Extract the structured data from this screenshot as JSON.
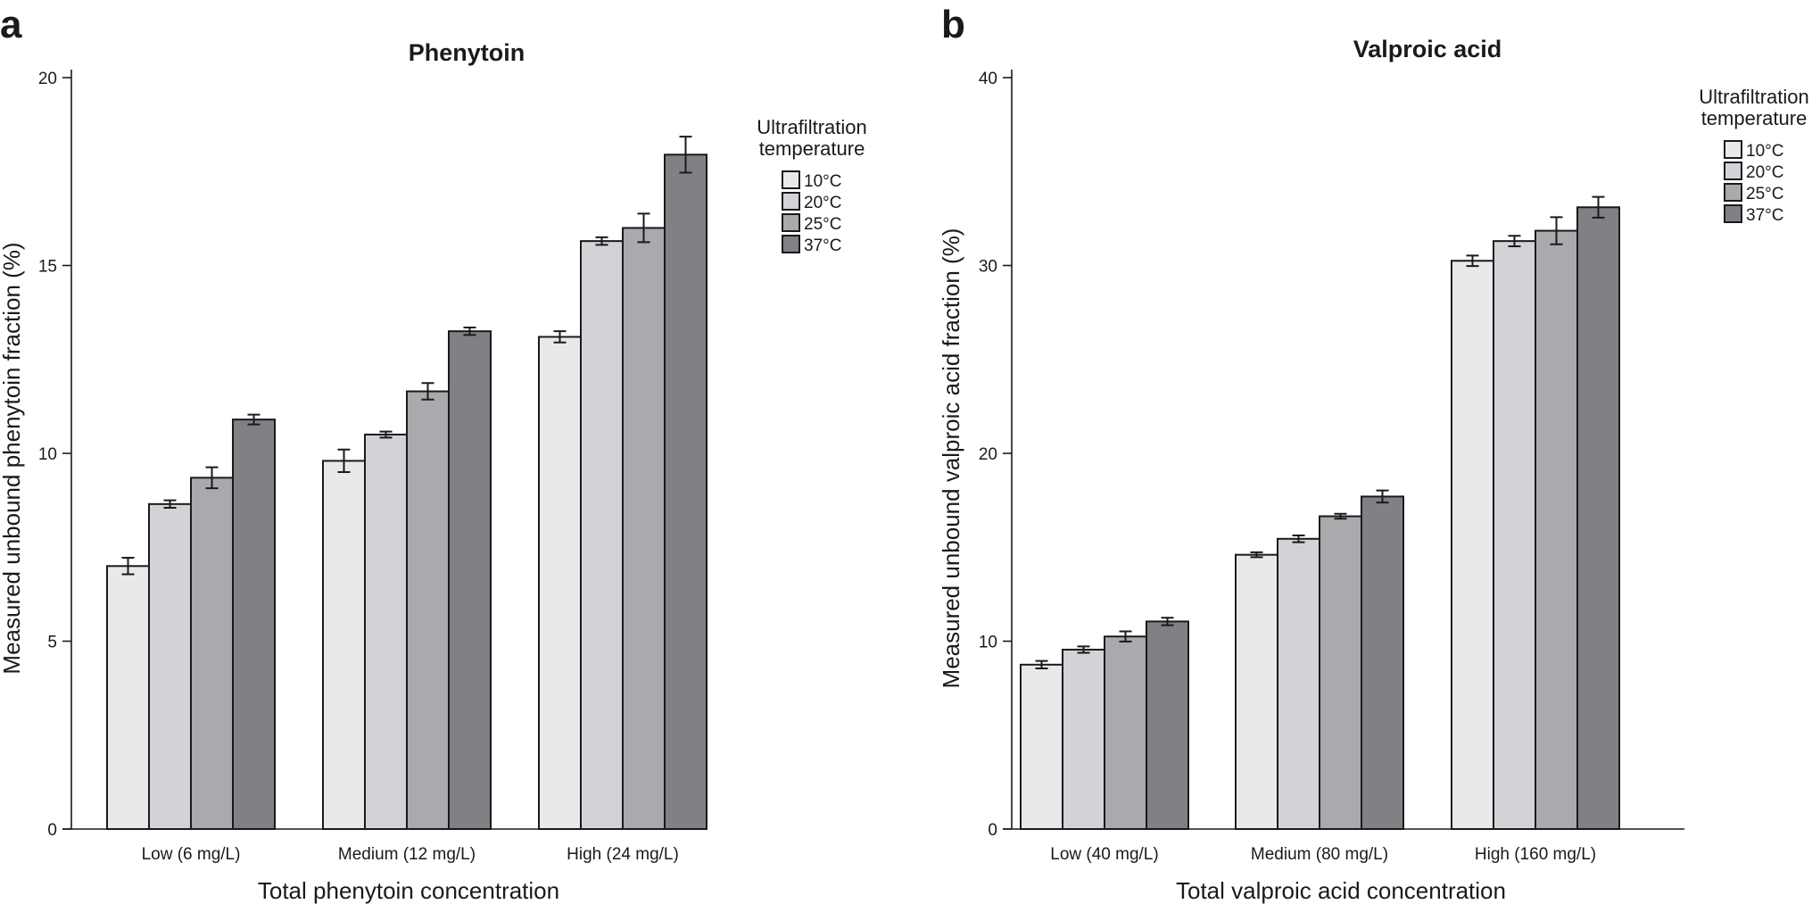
{
  "colors": [
    "#e8e9eb",
    "#d2d3d6",
    "#a9aaad",
    "#808185"
  ],
  "chart_data": [
    {
      "type": "bar",
      "panel_label": "a",
      "title": "Phenytoin",
      "xlabel": "Total phenytoin concentration",
      "ylabel": "Measured unbound phenytoin fraction (%)",
      "ylim": [
        0,
        20
      ],
      "yticks": [
        0,
        5,
        10,
        15,
        20
      ],
      "categories": [
        "Low  (6 mg/L)",
        "Medium (12 mg/L)",
        "High (24 mg/L)"
      ],
      "legend_title": [
        "Ultrafiltration",
        "temperature"
      ],
      "legend_position": "top-right",
      "grid": false,
      "series": [
        {
          "name": "10°C",
          "values": [
            7.0,
            9.8,
            13.1
          ],
          "errors": [
            0.22,
            0.3,
            0.15
          ]
        },
        {
          "name": "20°C",
          "values": [
            8.65,
            10.5,
            15.65
          ],
          "errors": [
            0.1,
            0.08,
            0.1
          ]
        },
        {
          "name": "25°C",
          "values": [
            9.35,
            11.65,
            16.0
          ],
          "errors": [
            0.28,
            0.22,
            0.38
          ]
        },
        {
          "name": "37°C",
          "values": [
            10.9,
            13.25,
            17.95
          ],
          "errors": [
            0.13,
            0.1,
            0.48
          ]
        }
      ]
    },
    {
      "type": "bar",
      "panel_label": "b",
      "title": "Valproic acid",
      "xlabel": "Total valproic acid concentration",
      "ylabel": "Measured unbound valproic acid fraction (%)",
      "ylim": [
        0,
        40
      ],
      "yticks": [
        0,
        10,
        20,
        30,
        40
      ],
      "categories": [
        "Low  (40 mg/L)",
        "Medium (80 mg/L)",
        "High (160 mg/L)"
      ],
      "legend_title": [
        "Ultrafiltration",
        "temperature"
      ],
      "legend_position": "top-right",
      "grid": false,
      "series": [
        {
          "name": "10°C",
          "values": [
            8.75,
            14.6,
            30.25
          ],
          "errors": [
            0.2,
            0.13,
            0.28
          ]
        },
        {
          "name": "20°C",
          "values": [
            9.55,
            15.45,
            31.3
          ],
          "errors": [
            0.17,
            0.18,
            0.28
          ]
        },
        {
          "name": "25°C",
          "values": [
            10.25,
            16.65,
            31.85
          ],
          "errors": [
            0.27,
            0.13,
            0.72
          ]
        },
        {
          "name": "37°C",
          "values": [
            11.05,
            17.7,
            33.1
          ],
          "errors": [
            0.2,
            0.32,
            0.55
          ]
        }
      ]
    }
  ]
}
